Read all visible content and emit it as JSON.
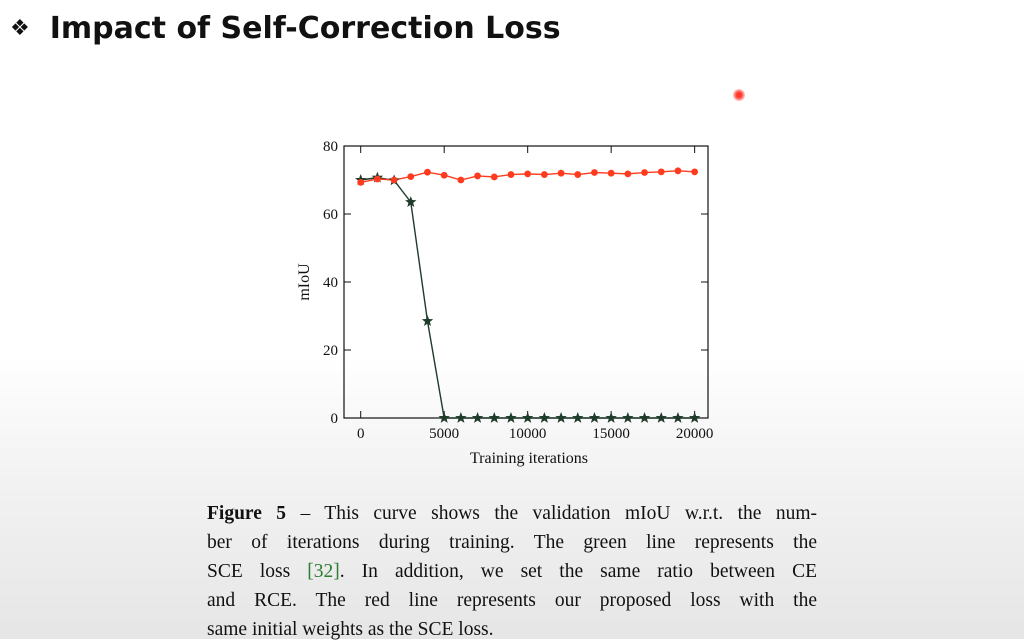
{
  "slide": {
    "bullet_icon": "❖",
    "title": "Impact of Self-Correction Loss"
  },
  "caption": {
    "figure_label": "Figure 5",
    "line1_rest": " – This curve shows the validation mIoU w.r.t. the num-",
    "line2": "ber of iterations during training.  The green line represents the",
    "line3_pre": "SCE loss ",
    "line3_ref": "[32]",
    "line3_post": ".  In addition, we set the same ratio between CE",
    "line4": "and RCE. The red line represents our proposed loss with the",
    "line5": "same initial weights as the SCE loss."
  },
  "chart_data": {
    "type": "line",
    "title": "",
    "xlabel": "Training iterations",
    "ylabel": "mIoU",
    "xlim": [
      -1000,
      20800
    ],
    "ylim": [
      0,
      80
    ],
    "xticks": [
      0,
      5000,
      10000,
      15000,
      20000
    ],
    "yticks": [
      0,
      20,
      40,
      60,
      80
    ],
    "grid": false,
    "legend": "none",
    "series": [
      {
        "color": "#ff3b1f",
        "marker": "circle",
        "x": [
          0,
          1000,
          2000,
          3000,
          4000,
          5000,
          6000,
          7000,
          8000,
          9000,
          10000,
          11000,
          12000,
          13000,
          14000,
          15000,
          16000,
          17000,
          18000,
          19000,
          20000
        ],
        "y": [
          69.3,
          70.3,
          70.0,
          71.0,
          72.3,
          71.4,
          70.0,
          71.2,
          70.9,
          71.6,
          71.8,
          71.6,
          72.0,
          71.6,
          72.2,
          72.0,
          71.8,
          72.2,
          72.4,
          72.7,
          72.4
        ]
      },
      {
        "color": "#1f3b2a",
        "marker": "star",
        "x": [
          0,
          1000,
          2000,
          3000,
          4000,
          5000,
          6000,
          7000,
          8000,
          9000,
          10000,
          11000,
          12000,
          13000,
          14000,
          15000,
          16000,
          17000,
          18000,
          19000,
          20000
        ],
        "y": [
          70.0,
          70.7,
          69.9,
          63.5,
          28.5,
          0,
          0,
          0,
          0,
          0,
          0,
          0,
          0,
          0,
          0,
          0,
          0,
          0,
          0,
          0,
          0
        ]
      }
    ]
  }
}
